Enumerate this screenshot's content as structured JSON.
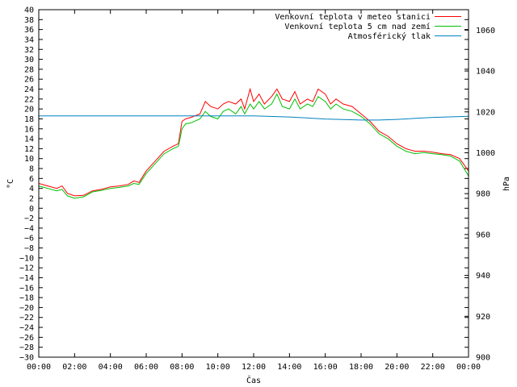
{
  "chart_data": {
    "type": "line",
    "xlabel": "Čas",
    "ylabel": "°C",
    "y2label": "hPa",
    "x_ticks": [
      "00:00",
      "02:00",
      "04:00",
      "06:00",
      "08:00",
      "10:00",
      "12:00",
      "14:00",
      "16:00",
      "18:00",
      "20:00",
      "22:00",
      "00:00"
    ],
    "x_range_hours": [
      0,
      24
    ],
    "ylim": [
      -30,
      40
    ],
    "y_ticks": [
      40,
      38,
      36,
      34,
      32,
      30,
      28,
      26,
      24,
      22,
      20,
      18,
      16,
      14,
      12,
      10,
      8,
      6,
      4,
      2,
      0,
      -2,
      -4,
      -6,
      -8,
      -10,
      -12,
      -14,
      -16,
      -18,
      -20,
      -22,
      -24,
      -26,
      -28,
      -30
    ],
    "y2lim": [
      900,
      1070
    ],
    "y2_ticks": [
      1060,
      1040,
      1020,
      1000,
      980,
      960,
      940,
      920,
      900
    ],
    "grid": false,
    "legend_position": "top-right",
    "series": [
      {
        "name": "Venkovní teplota v meteo stanici",
        "color": "#ff0000",
        "axis": "left",
        "x": [
          0,
          0.5,
          1,
          1.3,
          1.6,
          2,
          2.5,
          3,
          3.5,
          4,
          4.5,
          5,
          5.3,
          5.6,
          6,
          6.5,
          7,
          7.5,
          7.8,
          8,
          8.2,
          8.5,
          9,
          9.3,
          9.6,
          10,
          10.3,
          10.6,
          11,
          11.3,
          11.5,
          11.8,
          12,
          12.3,
          12.6,
          13,
          13.3,
          13.6,
          14,
          14.3,
          14.6,
          15,
          15.3,
          15.6,
          16,
          16.3,
          16.6,
          17,
          17.5,
          18,
          18.5,
          19,
          19.5,
          20,
          20.5,
          21,
          21.5,
          22,
          22.5,
          23,
          23.5,
          24
        ],
        "values": [
          5,
          4.5,
          4,
          4.5,
          3,
          2.5,
          2.6,
          3.5,
          3.8,
          4.3,
          4.5,
          4.8,
          5.5,
          5.2,
          7.5,
          9.5,
          11.5,
          12.5,
          13,
          17.5,
          18,
          18.3,
          19,
          21.5,
          20.5,
          20,
          21,
          21.5,
          21,
          22,
          20,
          24,
          21.5,
          23,
          21,
          22.5,
          24,
          22,
          21.5,
          23.5,
          21,
          22,
          21.5,
          24,
          23,
          21,
          22,
          21,
          20.5,
          19,
          17.5,
          15.5,
          14.5,
          13,
          12,
          11.5,
          11.5,
          11.3,
          11,
          10.8,
          10,
          7.5
        ]
      },
      {
        "name": "Venkovní teplota 5 cm nad zemí",
        "color": "#00c000",
        "axis": "left",
        "x": [
          0,
          0.5,
          1,
          1.3,
          1.6,
          2,
          2.5,
          3,
          3.5,
          4,
          4.5,
          5,
          5.3,
          5.6,
          6,
          6.5,
          7,
          7.5,
          7.8,
          8,
          8.2,
          8.5,
          9,
          9.3,
          9.6,
          10,
          10.3,
          10.6,
          11,
          11.3,
          11.5,
          11.8,
          12,
          12.3,
          12.6,
          13,
          13.3,
          13.6,
          14,
          14.3,
          14.6,
          15,
          15.3,
          15.6,
          16,
          16.3,
          16.6,
          17,
          17.5,
          18,
          18.5,
          19,
          19.5,
          20,
          20.5,
          21,
          21.5,
          22,
          22.5,
          23,
          23.5,
          24
        ],
        "values": [
          4.5,
          4,
          3.5,
          3.8,
          2.5,
          2,
          2.3,
          3.3,
          3.6,
          4,
          4.2,
          4.5,
          5,
          4.8,
          7,
          9,
          11,
          12,
          12.5,
          16,
          17,
          17.2,
          18,
          19.5,
          18.5,
          18,
          19.5,
          20,
          19,
          20.5,
          19,
          21,
          20,
          21.5,
          20,
          21,
          23,
          20.5,
          20,
          22,
          20,
          21,
          20.5,
          22.5,
          21.5,
          20,
          21,
          20,
          19.5,
          18.5,
          17,
          15,
          14,
          12.5,
          11.5,
          11,
          11.2,
          11,
          10.8,
          10.5,
          9.5,
          6.5
        ]
      },
      {
        "name": "Atmosférický tlak",
        "color": "#0080c0",
        "axis": "right",
        "x": [
          0,
          2,
          4,
          6,
          8,
          10,
          12,
          14,
          16,
          18,
          19,
          20,
          22,
          24
        ],
        "values": [
          1018,
          1018,
          1018,
          1018,
          1018,
          1018,
          1018,
          1017.5,
          1016.5,
          1016,
          1016,
          1016.3,
          1017.3,
          1017.8
        ]
      }
    ]
  }
}
